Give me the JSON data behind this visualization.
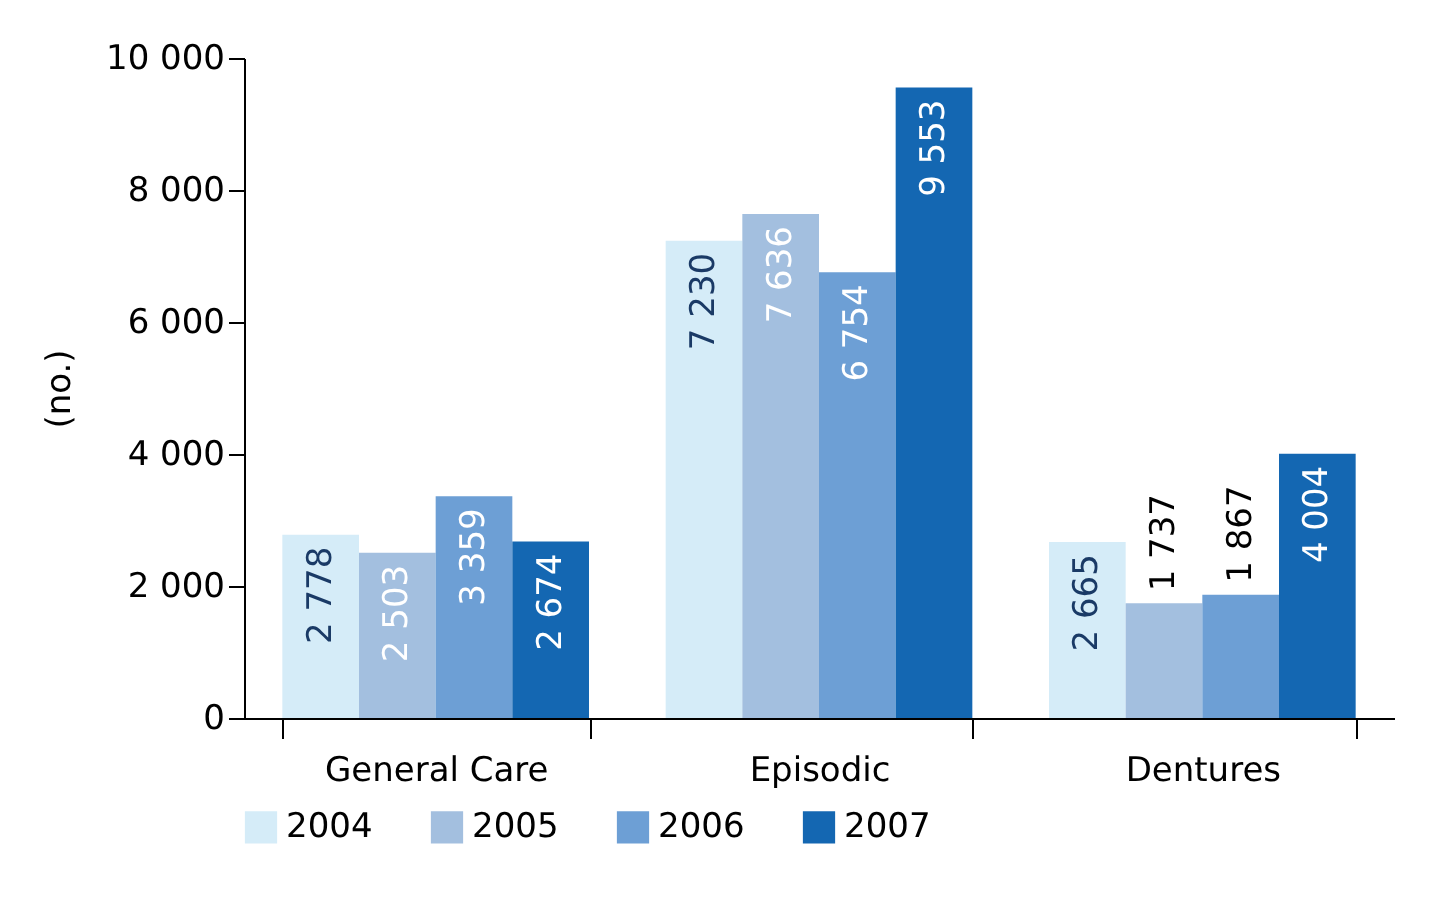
{
  "chart_data": {
    "type": "bar",
    "ylabel": "(no.)",
    "categories": [
      "General Care",
      "Episodic",
      "Dentures"
    ],
    "series": [
      {
        "name": "2004",
        "color": "#d5ecf8",
        "values": [
          2778,
          7230,
          2665
        ],
        "value_labels": [
          "2 778",
          "7 230",
          "2 665"
        ]
      },
      {
        "name": "2005",
        "color": "#a3bfdf",
        "values": [
          2503,
          7636,
          1737
        ],
        "value_labels": [
          "2 503",
          "7 636",
          "1 737"
        ]
      },
      {
        "name": "2006",
        "color": "#6d9fd5",
        "values": [
          3359,
          6754,
          1867
        ],
        "value_labels": [
          "3 359",
          "6 754",
          "1 867"
        ]
      },
      {
        "name": "2007",
        "color": "#1467b2",
        "values": [
          2674,
          9553,
          4004
        ],
        "value_labels": [
          "2 674",
          "9 553",
          "4 004"
        ]
      }
    ],
    "ylim": [
      0,
      10000
    ],
    "yticks": [
      0,
      {
        "value": 2000,
        "label": "2 000"
      },
      {
        "value": 4000,
        "label": "4 000"
      },
      {
        "value": 6000,
        "label": "6 000"
      },
      {
        "value": 8000,
        "label": "8 000"
      },
      {
        "value": 10000,
        "label": "10 000"
      }
    ],
    "grid": false,
    "legend": "bottom"
  }
}
